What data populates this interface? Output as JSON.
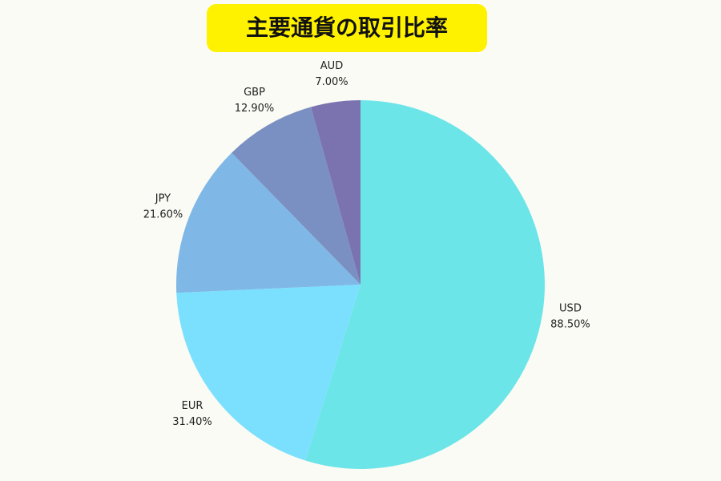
{
  "chart_data": {
    "type": "pie",
    "title": "主要通貨の取引比率",
    "categories": [
      "USD",
      "EUR",
      "JPY",
      "GBP",
      "AUD"
    ],
    "values": [
      88.5,
      31.4,
      21.6,
      12.9,
      7.0
    ],
    "value_labels": [
      "88.50%",
      "31.40%",
      "21.60%",
      "12.90%",
      "7.00%"
    ],
    "colors": [
      "#6ce5e8",
      "#7be0fd",
      "#7fb8e6",
      "#7b90c2",
      "#7b72b0"
    ]
  }
}
